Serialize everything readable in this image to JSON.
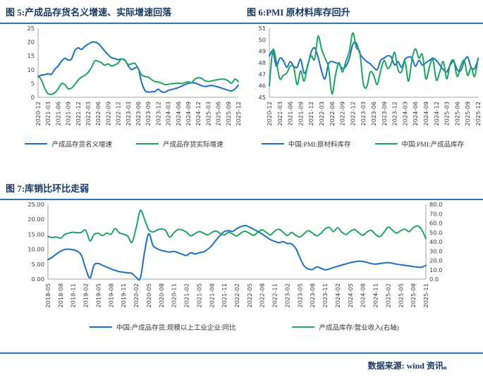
{
  "figures": {
    "fig5_title": "图 5:产成品存货名义增速、实际增速回落",
    "fig6_title": "图 6:PMI 原材料库存回升",
    "fig7_title": "图 7:库销比环比走弱",
    "source_label": "数据来源: wind 资讯。"
  },
  "colors": {
    "blue": "#1B6FC2",
    "green": "#1FA362",
    "title_navy": "#17375E",
    "rule_blue": "#2E74B5",
    "axis": "#A6A6A6",
    "tick_text": "#3d3d3d"
  },
  "chart_data": [
    {
      "type": "line",
      "title": "产成品存货名义增速、实际增速回落",
      "x_tick_labels": [
        "2020-12",
        "2021-03",
        "2021-06",
        "2021-09",
        "2021-12",
        "2022-03",
        "2022-06",
        "2022-09",
        "2022-12",
        "2023-03",
        "2023-06",
        "2023-09",
        "2023-12",
        "2024-03",
        "2024-06",
        "2024-09",
        "2024-12",
        "2025-03",
        "2025-06",
        "2025-09",
        "2025-12"
      ],
      "x_label_every": 3,
      "y_left": {
        "min": 0,
        "max": 25,
        "tick_labels": [
          "0",
          "5",
          "10",
          "15",
          "20",
          "25"
        ]
      },
      "y_right": null,
      "legend_position": "bottom",
      "grid": false,
      "series": [
        {
          "name": "产成品存货名义增速",
          "color_key": "blue",
          "axis": "left",
          "values": [
            7.5,
            8.0,
            8.2,
            8.5,
            8.3,
            10.1,
            11.3,
            13.0,
            14.1,
            13.5,
            13.8,
            16.8,
            17.9,
            17.3,
            18.4,
            19.2,
            19.9,
            20.0,
            19.5,
            18.2,
            16.7,
            15.4,
            14.3,
            14.0,
            13.6,
            13.9,
            13.5,
            11.4,
            10.0,
            10.6,
            10.4,
            5.5,
            2.5,
            1.9,
            2.0,
            2.1,
            2.9,
            2.0,
            1.8,
            2.5,
            2.8,
            3.1,
            3.5,
            4.0,
            4.6,
            5.0,
            5.3,
            5.1,
            4.7,
            4.2,
            3.9,
            4.1,
            4.3,
            4.0,
            3.7,
            3.3,
            2.9,
            2.5,
            2.3,
            3.0,
            4.4
          ]
        },
        {
          "name": "产成品存货实际增速",
          "color_key": "green",
          "axis": "left",
          "values": [
            7.7,
            6.3,
            3.2,
            1.3,
            1.1,
            1.6,
            3.0,
            4.9,
            4.6,
            3.1,
            3.3,
            4.6,
            6.2,
            7.3,
            7.9,
            9.0,
            10.8,
            13.2,
            13.0,
            12.5,
            11.6,
            12.1,
            11.3,
            11.7,
            12.4,
            13.9,
            13.3,
            11.9,
            12.1,
            12.3,
            10.4,
            8.1,
            7.5,
            7.3,
            6.4,
            5.7,
            5.5,
            5.1,
            4.6,
            4.7,
            4.9,
            5.0,
            5.1,
            5.0,
            5.3,
            5.6,
            5.3,
            6.6,
            7.1,
            6.8,
            6.0,
            5.7,
            5.9,
            6.2,
            6.4,
            6.6,
            6.5,
            5.9,
            5.1,
            6.6,
            5.7
          ]
        }
      ]
    },
    {
      "type": "line",
      "title": "PMI 原材料库存回升",
      "x_tick_labels": [
        "2020-12",
        "2021-03",
        "2021-06",
        "2021-09",
        "2021-12",
        "2022-03",
        "2022-06",
        "2022-09",
        "2022-12",
        "2023-03",
        "2023-06",
        "2023-09",
        "2023-12",
        "2024-03",
        "2024-06",
        "2024-09",
        "2024-12",
        "2025-03",
        "2025-06",
        "2025-09",
        "2025-12"
      ],
      "x_label_every": 3,
      "y_left": {
        "min": 45,
        "max": 51,
        "tick_labels": [
          "45",
          "46",
          "47",
          "48",
          "49",
          "50",
          "51"
        ]
      },
      "y_right": null,
      "legend_position": "bottom",
      "grid": false,
      "series": [
        {
          "name": "中国:PMI:原材料库存",
          "color_key": "blue",
          "axis": "left",
          "values": [
            48.6,
            49.0,
            47.7,
            48.4,
            48.2,
            47.6,
            48.1,
            47.7,
            47.6,
            48.3,
            47.1,
            47.7,
            48.9,
            49.3,
            48.5,
            47.3,
            46.6,
            47.9,
            48.1,
            48.0,
            47.9,
            47.5,
            47.7,
            48.4,
            49.6,
            49.7,
            48.8,
            48.4,
            48.1,
            47.9,
            47.6,
            47.4,
            48.2,
            48.4,
            48.6,
            48.5,
            47.8,
            48.1,
            47.6,
            48.3,
            48.5,
            48.4,
            47.7,
            48.2,
            47.8,
            48.0,
            48.2,
            48.4,
            48.2,
            47.8,
            47.4,
            47.2,
            47.8,
            48.1,
            47.4,
            47.3,
            48.1,
            48.5,
            47.6,
            47.5,
            48.3
          ]
        },
        {
          "name": "中国:PMI:产成品库存",
          "color_key": "green",
          "axis": "left",
          "values": [
            46.0,
            49.1,
            48.1,
            46.6,
            46.9,
            47.1,
            47.7,
            47.6,
            46.1,
            47.3,
            46.4,
            47.8,
            48.6,
            48.3,
            50.3,
            49.2,
            48.4,
            47.6,
            45.3,
            46.9,
            48.0,
            47.2,
            48.1,
            49.0,
            50.6,
            49.3,
            48.9,
            46.2,
            45.9,
            47.2,
            46.9,
            46.1,
            47.3,
            48.2,
            47.5,
            47.9,
            48.9,
            47.4,
            47.2,
            48.1,
            46.4,
            48.3,
            49.2,
            48.4,
            48.7,
            46.6,
            47.6,
            48.3,
            46.5,
            47.2,
            48.1,
            46.6,
            47.9,
            48.2,
            46.8,
            47.7,
            48.2,
            46.9,
            47.6,
            46.8,
            48.4
          ]
        }
      ]
    },
    {
      "type": "line",
      "title": "库销比环比走弱",
      "x_tick_labels": [
        "2018-05",
        "2018-08",
        "2018-11",
        "2019-02",
        "2019-05",
        "2019-08",
        "2019-11",
        "2020-02",
        "2020-05",
        "2020-08",
        "2020-11",
        "2021-02",
        "2021-05",
        "2021-08",
        "2021-11",
        "2022-02",
        "2022-05",
        "2022-08",
        "2022-11",
        "2023-02",
        "2023-05",
        "2023-08",
        "2023-11",
        "2024-02",
        "2024-05",
        "2024-08",
        "2024-11",
        "2025-02",
        "2025-05",
        "2025-08",
        "2025-11"
      ],
      "x_label_every": 3,
      "y_left": {
        "min": 0,
        "max": 25,
        "tick_labels": [
          "0.00",
          "5.00",
          "10.00",
          "15.00",
          "20.00",
          "25.00"
        ]
      },
      "y_right": {
        "min": 0,
        "max": 80,
        "tick_labels": [
          "0.0",
          "10.0",
          "20.0",
          "30.0",
          "40.0",
          "50.0",
          "60.0",
          "70.0",
          "80.0"
        ]
      },
      "legend_position": "bottom",
      "grid": false,
      "series": [
        {
          "name": "中国:产成品存货:规模以上工业企业:同比",
          "color_key": "blue",
          "axis": "left",
          "values": [
            6.5,
            7.3,
            8.4,
            9.3,
            9.9,
            10.0,
            9.8,
            9.3,
            7.9,
            3.5,
            0.4,
            4.7,
            5.2,
            4.6,
            4.0,
            3.4,
            2.9,
            2.5,
            2.3,
            2.1,
            1.9,
            0.6,
            0.3,
            9.0,
            15.2,
            11.3,
            10.2,
            9.6,
            9.3,
            9.0,
            9.3,
            8.8,
            8.3,
            7.9,
            8.8,
            8.4,
            8.8,
            9.1,
            9.9,
            11.2,
            13.0,
            14.6,
            15.9,
            16.2,
            16.0,
            16.9,
            17.6,
            17.9,
            17.4,
            16.7,
            15.9,
            15.1,
            14.1,
            13.2,
            12.6,
            12.2,
            12.5,
            11.9,
            11.8,
            10.3,
            7.2,
            4.4,
            3.4,
            3.2,
            4.1,
            3.6,
            3.1,
            3.4,
            3.9,
            4.3,
            4.7,
            5.1,
            5.5,
            5.8,
            6.0,
            5.9,
            5.6,
            5.2,
            5.0,
            5.2,
            5.4,
            5.5,
            5.3,
            5.0,
            4.8,
            4.6,
            4.4,
            4.2,
            4.0,
            4.0,
            4.6
          ]
        },
        {
          "name": "产成品库存/营业收入(右轴)",
          "color_key": "green",
          "axis": "right",
          "values": [
            45.8,
            44.5,
            45.1,
            43.8,
            47.7,
            49.3,
            50.2,
            49.6,
            50.2,
            52.2,
            41.0,
            47.7,
            49.0,
            46.7,
            49.3,
            48.0,
            54.1,
            49.6,
            48.0,
            46.1,
            39.4,
            55.0,
            73.6,
            64.0,
            53.0,
            50.5,
            52.5,
            53.8,
            52.2,
            44.8,
            49.6,
            53.1,
            52.5,
            50.2,
            46.4,
            48.6,
            50.9,
            49.3,
            47.4,
            49.9,
            51.5,
            49.0,
            47.2,
            50.2,
            48.3,
            46.1,
            49.6,
            51.2,
            49.0,
            47.0,
            50.2,
            52.8,
            50.0,
            47.4,
            51.5,
            53.4,
            50.2,
            46.7,
            49.9,
            47.0,
            45.1,
            48.6,
            51.8,
            49.3,
            46.4,
            49.0,
            53.8,
            55.4,
            50.9,
            55.0,
            50.2,
            47.7,
            51.2,
            53.1,
            49.6,
            47.0,
            50.5,
            52.2,
            48.0,
            45.4,
            49.9,
            55.7,
            52.5,
            49.3,
            51.8,
            53.4,
            50.9,
            55.0,
            57.0,
            53.0,
            43.5
          ]
        }
      ]
    }
  ]
}
